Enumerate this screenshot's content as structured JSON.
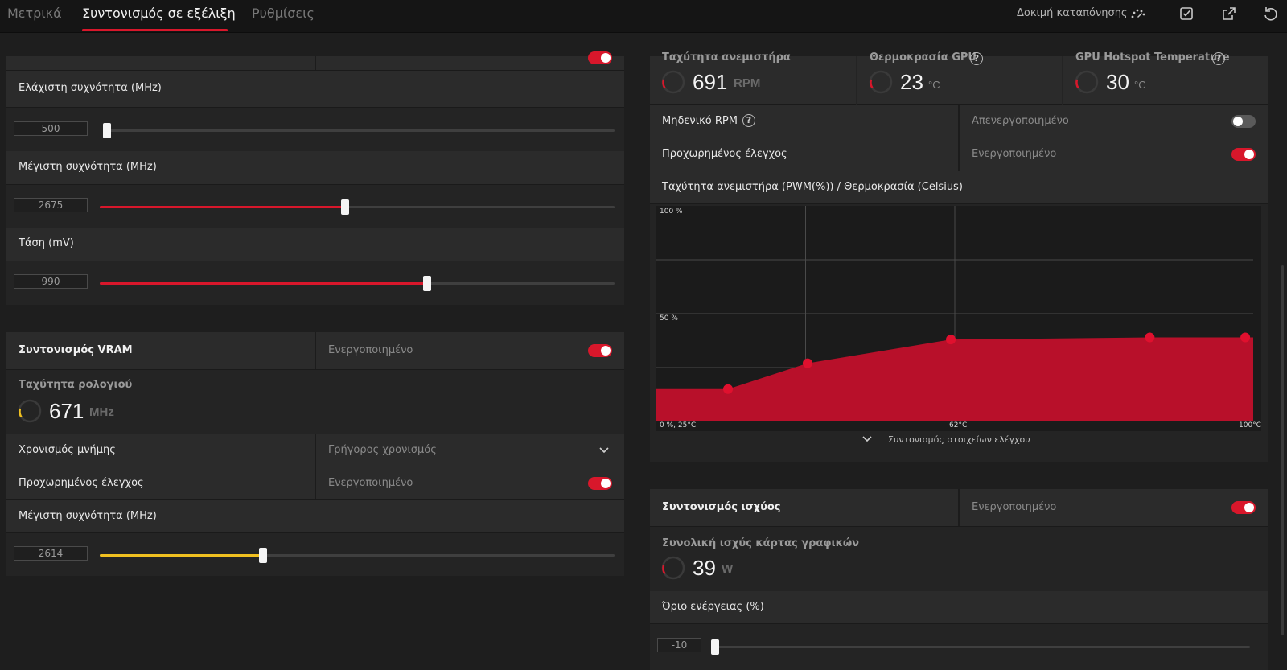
{
  "tabs": [
    "Μετρικά",
    "Συντονισμός σε εξέλιξη",
    "Ρυθμίσεις"
  ],
  "toolbar": {
    "stress_test_label": "Δοκιμή καταπόνησης",
    "icons": [
      "stress-test-icon",
      "apply-icon",
      "export-icon",
      "reset-icon"
    ]
  },
  "gpu_tuning": {
    "min_freq": {
      "label": "Ελάχιστη συχνότητα (MHz)",
      "value": "500",
      "fraction": 0.0
    },
    "max_freq": {
      "label": "Μέγιστη συχνότητα (MHz)",
      "value": "2675",
      "fraction": 0.41
    },
    "voltage": {
      "label": "Τάση (mV)",
      "value": "990",
      "fraction": 0.63
    }
  },
  "vram": {
    "title": "Συντονισμός VRAM",
    "state": "Ενεργοποιημένο",
    "clock_label": "Ταχύτητα ρολογιού",
    "clock_value": "671",
    "clock_unit": "MHz",
    "timing_label": "Χρονισμός μνήμης",
    "timing_value": "Γρήγορος χρονισμός",
    "advanced_label": "Προχωρημένος έλεγχος",
    "advanced_state": "Ενεργοποιημένο",
    "max_freq_label": "Μέγιστη συχνότητα (MHz)",
    "max_freq_value": "2614",
    "max_freq_fraction": 0.27
  },
  "fan": {
    "fan_speed_label": "Ταχύτητα ανεμιστήρα",
    "fan_speed_value": "691",
    "fan_speed_unit": "RPM",
    "gpu_temp_label": "Θερμοκρασία GPU",
    "gpu_temp_value": "23",
    "gpu_temp_unit": "°C",
    "hotspot_label": "GPU Hotspot Temperature",
    "hotspot_value": "30",
    "hotspot_unit": "°C",
    "zero_rpm_label": "Μηδενικό RPM",
    "zero_rpm_state": "Απενεργοποιημένο",
    "advanced_label": "Προχωρημένος έλεγχος",
    "advanced_state": "Ενεργοποιημένο",
    "curve_title": "Ταχύτητα ανεμιστήρα (PWM(%)) / Θερμοκρασία (Celsius)",
    "expand_label": "Συντονισμός στοιχείων ελέγχου"
  },
  "chart_data": {
    "type": "area",
    "title": "Ταχύτητα ανεμιστήρα (PWM(%)) / Θερμοκρασία (Celsius)",
    "xlabel": "",
    "ylabel": "",
    "y_tick_labels": [
      "100 %",
      "50 %"
    ],
    "x_tick_labels": [
      "0 %, 25°C",
      "62°C",
      "100°C"
    ],
    "xlim": [
      25,
      100
    ],
    "ylim": [
      0,
      100
    ],
    "points": [
      {
        "x": 34,
        "y": 15
      },
      {
        "x": 44,
        "y": 27
      },
      {
        "x": 62,
        "y": 38
      },
      {
        "x": 87,
        "y": 39
      },
      {
        "x": 99,
        "y": 39
      }
    ],
    "fill_color": "#b8102a",
    "grid": true
  },
  "power": {
    "title": "Συντονισμός ισχύος",
    "state": "Ενεργοποιημένο",
    "total_label": "Συνολική ισχύς κάρτας γραφικών",
    "total_value": "39",
    "total_unit": "W",
    "limit_label": "Όριο ενέργειας (%)",
    "limit_value": "-10",
    "limit_fraction": 0.0
  },
  "colors": {
    "accent": "#d8172b",
    "vram_slider": "#f0c020"
  }
}
